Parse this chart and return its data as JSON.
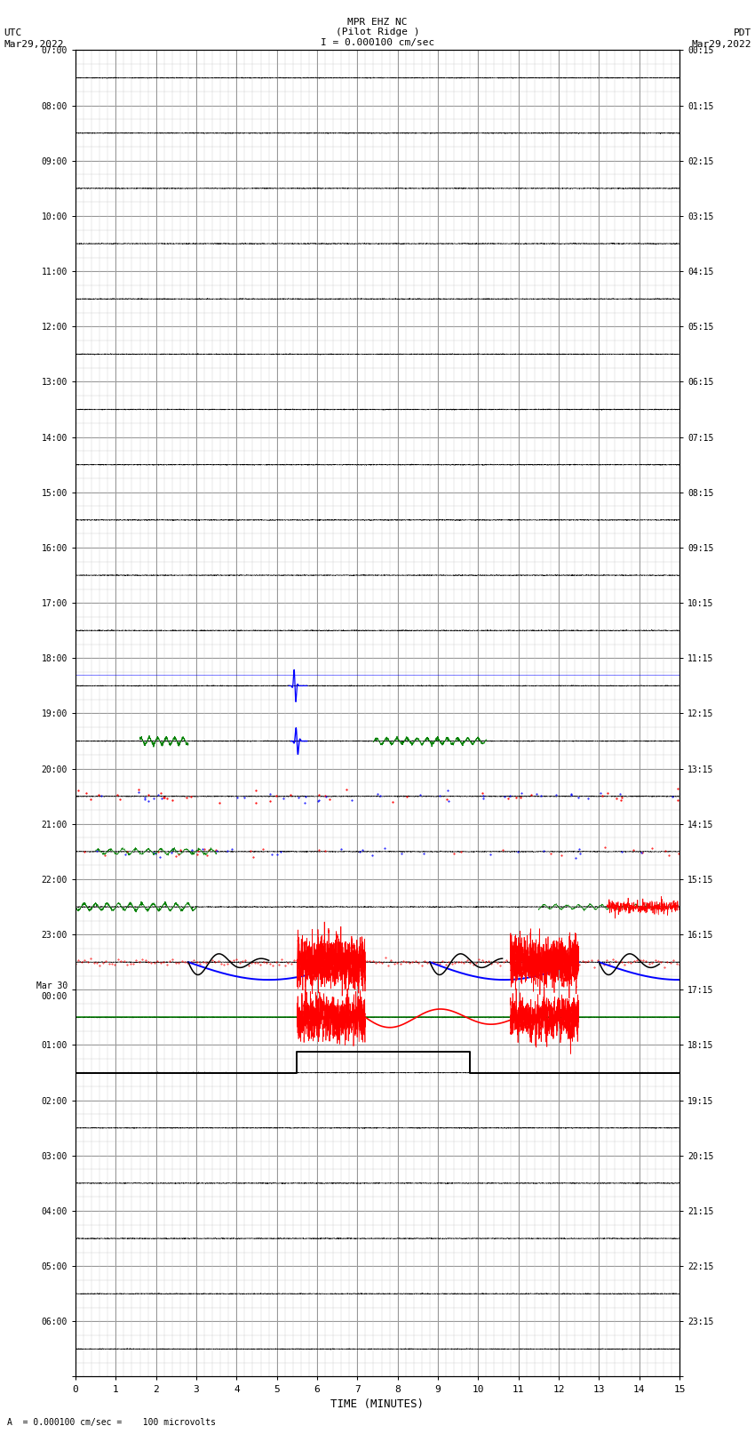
{
  "title_line1": "MPR EHZ NC",
  "title_line2": "(Pilot Ridge )",
  "scale_label": "I = 0.000100 cm/sec",
  "left_label_top": "UTC",
  "left_label_date": "Mar29,2022",
  "right_label_top": "PDT",
  "right_label_date": "Mar29,2022",
  "footer_label": "A  = 0.000100 cm/sec =    100 microvolts",
  "xlabel": "TIME (MINUTES)",
  "bg_color": "#ffffff",
  "grid_major_color": "#888888",
  "grid_minor_color": "#cccccc",
  "left_times_utc": [
    "07:00",
    "08:00",
    "09:00",
    "10:00",
    "11:00",
    "12:00",
    "13:00",
    "14:00",
    "15:00",
    "16:00",
    "17:00",
    "18:00",
    "19:00",
    "20:00",
    "21:00",
    "22:00",
    "23:00",
    "Mar 30\n00:00",
    "01:00",
    "02:00",
    "03:00",
    "04:00",
    "05:00",
    "06:00"
  ],
  "right_times_pdt": [
    "00:15",
    "01:15",
    "02:15",
    "03:15",
    "04:15",
    "05:15",
    "06:15",
    "07:15",
    "08:15",
    "09:15",
    "10:15",
    "11:15",
    "12:15",
    "13:15",
    "14:15",
    "15:15",
    "16:15",
    "17:15",
    "18:15",
    "19:15",
    "20:15",
    "21:15",
    "22:15",
    "23:15"
  ],
  "n_rows": 24,
  "x_min": 0,
  "x_max": 15,
  "x_ticks": [
    0,
    1,
    2,
    3,
    4,
    5,
    6,
    7,
    8,
    9,
    10,
    11,
    12,
    13,
    14,
    15
  ],
  "noise_seed": 42
}
